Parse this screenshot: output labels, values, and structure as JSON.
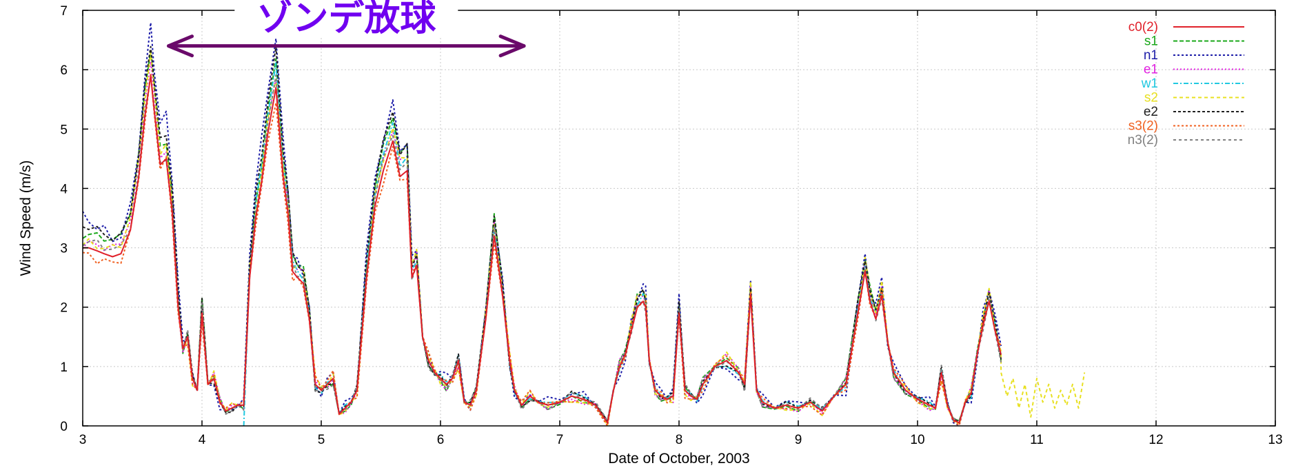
{
  "chart_data": {
    "type": "line",
    "title": "",
    "xlabel": "Date of October, 2003",
    "ylabel": "Wind Speed (m/s)",
    "xlim": [
      3,
      13
    ],
    "ylim": [
      0,
      7
    ],
    "xticks": [
      "3",
      "4",
      "5",
      "6",
      "7",
      "8",
      "9",
      "10",
      "11",
      "12",
      "13"
    ],
    "yticks": [
      "0",
      "1",
      "2",
      "3",
      "4",
      "5",
      "6",
      "7"
    ],
    "grid": true,
    "legend_position": "top-right",
    "annotation": {
      "text": "ゾンデ放球",
      "arrow_from_x": 3.72,
      "arrow_to_x": 6.7,
      "arrow_y": 6.4
    },
    "base_profile": {
      "x": [
        3.0,
        3.05,
        3.12,
        3.18,
        3.25,
        3.32,
        3.4,
        3.47,
        3.52,
        3.57,
        3.6,
        3.65,
        3.7,
        3.75,
        3.8,
        3.84,
        3.88,
        3.92,
        3.96,
        4.0,
        4.05,
        4.1,
        4.15,
        4.2,
        4.25,
        4.3,
        4.35,
        4.4,
        4.45,
        4.5,
        4.55,
        4.62,
        4.68,
        4.72,
        4.76,
        4.8,
        4.85,
        4.9,
        4.95,
        5.0,
        5.05,
        5.1,
        5.15,
        5.2,
        5.25,
        5.3,
        5.38,
        5.45,
        5.52,
        5.6,
        5.66,
        5.72,
        5.76,
        5.8,
        5.85,
        5.9,
        5.95,
        6.0,
        6.05,
        6.1,
        6.15,
        6.2,
        6.25,
        6.3,
        6.38,
        6.45,
        6.52,
        6.58,
        6.62,
        6.68,
        6.75,
        6.82,
        6.9,
        7.0,
        7.1,
        7.2,
        7.3,
        7.4,
        7.45,
        7.5,
        7.55,
        7.6,
        7.65,
        7.7,
        7.72,
        7.75,
        7.8,
        7.85,
        7.9,
        7.95,
        8.0,
        8.05,
        8.1,
        8.15,
        8.2,
        8.3,
        8.4,
        8.5,
        8.55,
        8.6,
        8.65,
        8.7,
        8.8,
        8.9,
        9.0,
        9.1,
        9.2,
        9.3,
        9.4,
        9.5,
        9.56,
        9.6,
        9.65,
        9.7,
        9.75,
        9.8,
        9.9,
        10.0,
        10.1,
        10.15,
        10.2,
        10.25,
        10.3,
        10.35,
        10.4,
        10.45,
        10.5,
        10.55,
        10.6,
        10.65,
        10.7
      ],
      "y": [
        3.0,
        3.0,
        2.95,
        2.9,
        2.85,
        2.9,
        3.3,
        4.2,
        5.2,
        5.9,
        5.3,
        4.4,
        4.5,
        3.6,
        2.0,
        1.3,
        1.5,
        0.8,
        0.6,
        1.9,
        0.7,
        0.8,
        0.4,
        0.25,
        0.3,
        0.35,
        0.35,
        2.5,
        3.5,
        4.1,
        4.9,
        5.7,
        4.2,
        3.6,
        2.6,
        2.5,
        2.4,
        1.8,
        0.7,
        0.6,
        0.7,
        0.8,
        0.2,
        0.3,
        0.4,
        0.6,
        2.5,
        3.7,
        4.3,
        4.8,
        4.2,
        4.3,
        2.5,
        2.7,
        1.5,
        1.1,
        0.9,
        0.8,
        0.7,
        0.8,
        1.1,
        0.4,
        0.35,
        0.6,
        1.8,
        3.2,
        2.2,
        1.1,
        0.6,
        0.35,
        0.5,
        0.4,
        0.35,
        0.4,
        0.5,
        0.45,
        0.35,
        0.05,
        0.6,
        1.0,
        1.2,
        1.6,
        2.0,
        2.1,
        2.0,
        1.1,
        0.6,
        0.5,
        0.45,
        0.5,
        1.9,
        0.6,
        0.5,
        0.45,
        0.7,
        1.0,
        1.1,
        0.9,
        0.7,
        2.2,
        0.6,
        0.4,
        0.3,
        0.35,
        0.3,
        0.4,
        0.25,
        0.5,
        0.7,
        1.9,
        2.6,
        2.1,
        1.8,
        2.2,
        1.4,
        0.9,
        0.6,
        0.45,
        0.35,
        0.3,
        0.9,
        0.35,
        0.1,
        0.05,
        0.4,
        0.55,
        1.2,
        1.7,
        2.1,
        1.6,
        1.2
      ]
    },
    "series": [
      {
        "name": "c0(2)",
        "color": "#e0202a",
        "dash": "",
        "x_start": 3.0,
        "x_end": 10.7,
        "amp": 1.0,
        "jitter": 0.0
      },
      {
        "name": "s1",
        "color": "#1aa81a",
        "dash": "6 3",
        "x_start": 3.0,
        "x_end": 10.7,
        "amp": 1.08,
        "jitter": 0.12
      },
      {
        "name": "n1",
        "color": "#1c1ca8",
        "dash": "3 3",
        "x_start": 3.0,
        "x_end": 10.7,
        "amp": 1.14,
        "jitter": 0.22
      },
      {
        "name": "e1",
        "color": "#e020e0",
        "dash": "2 3",
        "x_start": 3.0,
        "x_end": 10.7,
        "amp": 1.04,
        "jitter": 0.14
      },
      {
        "name": "w1",
        "color": "#20c8e0",
        "dash": "7 3 2 3",
        "x_start": 4.4,
        "x_end": 10.7,
        "amp": 1.06,
        "jitter": 0.1
      },
      {
        "name": "s2",
        "color": "#e8e020",
        "dash": "5 4",
        "x_start": 3.0,
        "x_end": 11.4,
        "amp": 1.05,
        "jitter": 0.15
      },
      {
        "name": "e2",
        "color": "#202020",
        "dash": "4 3",
        "x_start": 3.0,
        "x_end": 10.7,
        "amp": 1.1,
        "jitter": 0.12
      },
      {
        "name": "s3(2)",
        "color": "#f06020",
        "dash": "3 3",
        "x_start": 3.0,
        "x_end": 10.7,
        "amp": 0.98,
        "jitter": 0.16
      },
      {
        "name": "n3(2)",
        "color": "#808080",
        "dash": "4 4",
        "x_start": 3.0,
        "x_end": 10.7,
        "amp": 1.02,
        "jitter": 0.14
      }
    ],
    "s2_tail": {
      "x": [
        10.7,
        10.75,
        10.8,
        10.85,
        10.9,
        10.95,
        11.0,
        11.05,
        11.1,
        11.15,
        11.2,
        11.25,
        11.3,
        11.35,
        11.4
      ],
      "y": [
        0.9,
        0.5,
        0.8,
        0.3,
        0.7,
        0.15,
        0.8,
        0.4,
        0.7,
        0.3,
        0.6,
        0.35,
        0.7,
        0.3,
        0.9
      ]
    },
    "annotation_color": "#7000f0",
    "arrow_color": "#6a0a6a"
  }
}
